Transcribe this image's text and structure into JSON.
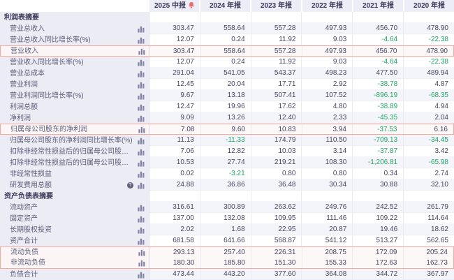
{
  "colors": {
    "negative_value": "#21a567",
    "highlight_border": "#f2aba3",
    "header_bg": "#ecedf6",
    "label_column_bg": "#ececf5",
    "stripe_bg": "#f4f5fa",
    "alert_bell": "#ee6b6b"
  },
  "icons": {
    "info_glyph": "?"
  },
  "table": {
    "columns": [
      {
        "label": "2025 中报",
        "alert": true
      },
      {
        "label": "2024 年报"
      },
      {
        "label": "2023 年报"
      },
      {
        "label": "2022 年报"
      },
      {
        "label": "2021 年报"
      },
      {
        "label": "2020 年报"
      }
    ],
    "rows": [
      {
        "section": "利润表摘要"
      },
      {
        "label": "营业总收入",
        "values": [
          "303.47",
          "558.64",
          "557.28",
          "497.93",
          "456.70",
          "478.90"
        ]
      },
      {
        "label": "营业总收入同比增长率(%)",
        "values": [
          "12.07",
          "0.24",
          "11.92",
          "9.03",
          "-4.64",
          "-22.38"
        ]
      },
      {
        "label": "营业收入",
        "hl": "single",
        "values": [
          "303.47",
          "558.64",
          "557.28",
          "497.93",
          "456.70",
          "478.90"
        ]
      },
      {
        "label": "营业收入同比增长率(%)",
        "values": [
          "12.07",
          "0.24",
          "11.92",
          "9.03",
          "-4.64",
          "-22.38"
        ]
      },
      {
        "label": "营业总成本",
        "values": [
          "291.04",
          "541.05",
          "543.37",
          "498.23",
          "477.50",
          "489.94"
        ]
      },
      {
        "label": "营业利润",
        "values": [
          "12.45",
          "20.04",
          "17.71",
          "2.92",
          "-38.78",
          "4.87"
        ]
      },
      {
        "label": "营业利润同比增长率(%)",
        "values": [
          "9.67",
          "13.18",
          "507.41",
          "107.52",
          "-896.19",
          "-68.35"
        ]
      },
      {
        "label": "利润总额",
        "values": [
          "12.47",
          "19.96",
          "17.62",
          "4.80",
          "-38.89",
          "4.94"
        ]
      },
      {
        "label": "净利润",
        "values": [
          "9.09",
          "13.26",
          "12.40",
          "2.33",
          "-45.35",
          "2.04"
        ]
      },
      {
        "label": "归属母公司股东的净利润",
        "hl": "single",
        "values": [
          "7.08",
          "9.60",
          "10.83",
          "3.94",
          "-37.53",
          "6.16"
        ]
      },
      {
        "label": "归属母公司股东的净利润同比增长率(%)",
        "values": [
          "11.13",
          "-11.33",
          "174.79",
          "110.50",
          "-709.13",
          "-34.45"
        ]
      },
      {
        "label": "扣除非经常性损益后的归属母公司股东净利润",
        "values": [
          "7.06",
          "12.82",
          "10.03",
          "3.14",
          "-37.87",
          "3.42"
        ]
      },
      {
        "label": "扣除非经常性损益后的归属母公司股东净利润同比增...",
        "values": [
          "10.53",
          "27.74",
          "219.21",
          "108.30",
          "-1,206.81",
          "-65.98"
        ]
      },
      {
        "label": "非经常性损益",
        "values": [
          "0.02",
          "-3.21",
          "0.80",
          "0.80",
          "0.34",
          "2.74"
        ]
      },
      {
        "label": "研发费用总额",
        "info": true,
        "values": [
          "24.88",
          "36.86",
          "36.48",
          "30.34",
          "30.88",
          "32.10"
        ]
      },
      {
        "section": "资产负债表摘要"
      },
      {
        "label": "流动资产",
        "values": [
          "316.61",
          "300.89",
          "263.62",
          "249.76",
          "242.52",
          "261.79"
        ]
      },
      {
        "label": "固定资产",
        "values": [
          "137.00",
          "132.08",
          "109.95",
          "111.46",
          "109.22",
          "114.64"
        ]
      },
      {
        "label": "长期股权投资",
        "values": [
          "2.02",
          "1.68",
          "22.95",
          "20.87",
          "19.46",
          "18.62"
        ]
      },
      {
        "label": "资产合计",
        "values": [
          "681.58",
          "641.66",
          "568.87",
          "541.12",
          "513.27",
          "562.65"
        ]
      },
      {
        "label": "流动负债",
        "hl": "top",
        "values": [
          "293.13",
          "257.40",
          "226.31",
          "208.75",
          "172.09",
          "205.24"
        ]
      },
      {
        "label": "非流动负债",
        "hl": "bottom",
        "values": [
          "180.30",
          "185.80",
          "151.30",
          "155.33",
          "172.63",
          "162.73"
        ]
      },
      {
        "label": "负债合计",
        "values": [
          "473.44",
          "443.20",
          "377.60",
          "364.08",
          "344.72",
          "367.97"
        ]
      }
    ]
  }
}
